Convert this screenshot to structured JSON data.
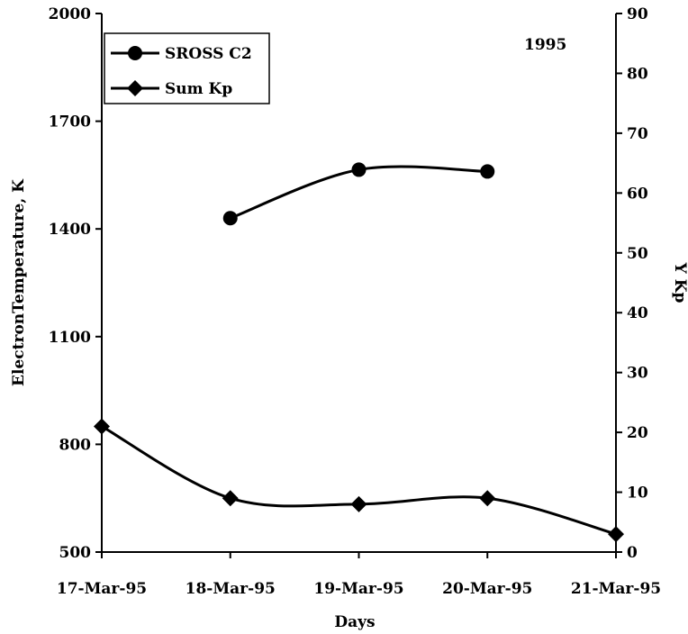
{
  "chart_data": {
    "type": "line",
    "annotation": "1995",
    "xlabel": "Days",
    "ylabel_left": "ElectronTemperature, K",
    "ylabel_right": "Y Kp",
    "categories": [
      "17-Mar-95",
      "18-Mar-95",
      "19-Mar-95",
      "20-Mar-95",
      "21-Mar-95"
    ],
    "y_left": {
      "ylim": [
        500,
        2000
      ],
      "ticks": [
        "500",
        "800",
        "1100",
        "1400",
        "1700",
        "2000"
      ]
    },
    "y_right": {
      "ylim": [
        0,
        90
      ],
      "ticks": [
        "0",
        "10",
        "20",
        "30",
        "40",
        "50",
        "60",
        "70",
        "80",
        "90"
      ]
    },
    "legend": {
      "placement": "top-left",
      "entries": [
        "SROSS C2",
        "Sum Kp"
      ]
    },
    "grid": false,
    "series": [
      {
        "name": "SROSS C2",
        "axis": "left",
        "marker": "circle",
        "values": [
          null,
          1430,
          1565,
          1560,
          null
        ]
      },
      {
        "name": "Sum Kp",
        "axis": "right",
        "marker": "diamond",
        "values": [
          21,
          9,
          8,
          9,
          3
        ]
      }
    ]
  }
}
